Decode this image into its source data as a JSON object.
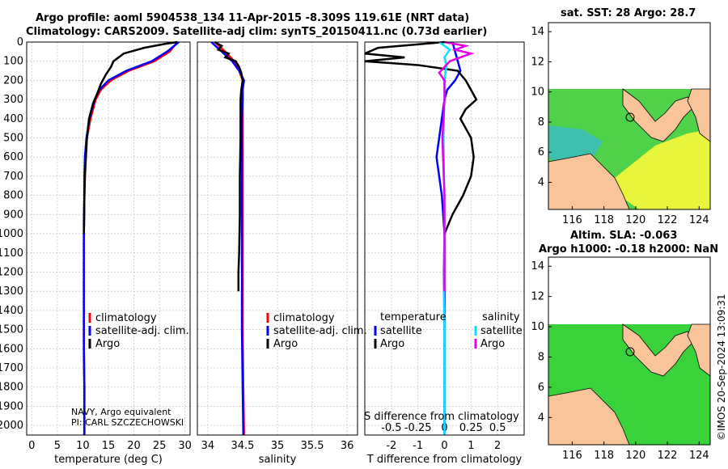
{
  "header": {
    "title_line1": "Argo profile: aoml 5904538_134 11-Apr-2015 -8.309S 119.61E (NRT data)",
    "title_line2": "Climatology: CARS2009. Satellite-adj clim: synTS_20150411.nc (0.73d earlier)"
  },
  "map_sst": {
    "title": "sat. SST: 28 Argo: 28.7",
    "x_ticks": [
      "116",
      "118",
      "120",
      "122",
      "124"
    ],
    "y_ticks": [
      "4",
      "6",
      "8",
      "10",
      "12",
      "14"
    ]
  },
  "map_sla": {
    "title_line1": "Altim. SLA: -0.063",
    "title_line2": "Argo h1000: -0.18 h2000: NaN",
    "x_ticks": [
      "116",
      "118",
      "120",
      "122",
      "124"
    ],
    "y_ticks": [
      "4",
      "6",
      "8",
      "10",
      "12",
      "14"
    ]
  },
  "watermark": "©IMOS 20-Sep-2024 13:09:31",
  "source_note": {
    "line1": "NAVY, Argo equivalent",
    "line2": "PI: CARL SZCZECHOWSKI"
  },
  "colors": {
    "climatology": "#ff0000",
    "satellite": "#0000ff",
    "argo": "#000000",
    "s_satellite": "#00e5ff",
    "s_argo": "#e600e6",
    "land": "#f9c49a"
  },
  "chart_data": [
    {
      "type": "line",
      "name": "temperature-profile",
      "xlabel": "temperature (deg C)",
      "xlim": [
        -1,
        31
      ],
      "ylim": [
        0,
        2050
      ],
      "x_ticks": [
        "0",
        "5",
        "10",
        "15",
        "20",
        "25",
        "30"
      ],
      "y_ticks": [
        "0",
        "100",
        "200",
        "300",
        "400",
        "500",
        "600",
        "700",
        "800",
        "900",
        "1000",
        "1100",
        "1200",
        "1300",
        "1400",
        "1500",
        "1600",
        "1700",
        "1800",
        "1900",
        "2000"
      ],
      "legend": [
        "climatology",
        "satellite-adj. clim.",
        "Argo"
      ],
      "series": [
        {
          "name": "climatology",
          "color": "#ff0000",
          "depth": [
            0,
            50,
            100,
            150,
            200,
            250,
            300,
            400,
            500,
            600,
            700,
            800,
            1000,
            1200,
            1400,
            1600,
            1800,
            2000,
            2050
          ],
          "values": [
            28.5,
            27,
            24,
            19,
            15.5,
            13.5,
            12.5,
            11.5,
            10.8,
            10.5,
            10.4,
            10.3,
            10.2,
            10.2,
            10.2,
            10.2,
            10.3,
            10.3,
            10.3
          ]
        },
        {
          "name": "satellite-adj. clim.",
          "color": "#0000ff",
          "depth": [
            0,
            50,
            100,
            150,
            200,
            250,
            300,
            400,
            500,
            600,
            700,
            800,
            1000,
            1200,
            1400,
            1600,
            1800,
            2000,
            2050
          ],
          "values": [
            28.8,
            26.5,
            23.5,
            18.5,
            15,
            13.2,
            12.3,
            11.3,
            10.7,
            10.4,
            10.3,
            10.3,
            10.2,
            10.2,
            10.2,
            10.2,
            10.3,
            10.3,
            10.3
          ]
        },
        {
          "name": "Argo",
          "color": "#000000",
          "depth": [
            0,
            10,
            30,
            60,
            100,
            130,
            170,
            220,
            270,
            320,
            400,
            500,
            600,
            700,
            800,
            1000
          ],
          "values": [
            28.5,
            26,
            22,
            18,
            16,
            15.5,
            14.5,
            13.5,
            12.8,
            12,
            11.2,
            10.8,
            10.6,
            10.4,
            10.3,
            10.2
          ]
        }
      ]
    },
    {
      "type": "line",
      "name": "salinity-profile",
      "xlabel": "salinity",
      "xlim": [
        33.85,
        36.15
      ],
      "ylim": [
        0,
        2050
      ],
      "x_ticks": [
        "34",
        "34.5",
        "35",
        "35.5",
        "36"
      ],
      "legend": [
        "climatology",
        "satellite-adj. clim.",
        "Argo"
      ],
      "series": [
        {
          "name": "climatology",
          "color": "#ff0000",
          "depth": [
            0,
            50,
            100,
            150,
            200,
            250,
            300,
            400,
            600,
            800,
            1000,
            1200,
            1500,
            1800,
            2050
          ],
          "values": [
            34.1,
            34.25,
            34.38,
            34.45,
            34.5,
            34.5,
            34.5,
            34.5,
            34.5,
            34.5,
            34.5,
            34.5,
            34.5,
            34.51,
            34.52
          ]
        },
        {
          "name": "satellite-adj. clim.",
          "color": "#0000ff",
          "depth": [
            0,
            50,
            100,
            150,
            200,
            250,
            300,
            400,
            600,
            800,
            1000,
            1200,
            1500,
            1800,
            2050
          ],
          "values": [
            34.05,
            34.2,
            34.35,
            34.45,
            34.52,
            34.5,
            34.5,
            34.49,
            34.49,
            34.49,
            34.49,
            34.49,
            34.49,
            34.5,
            34.51
          ]
        },
        {
          "name": "Argo",
          "color": "#000000",
          "depth": [
            0,
            20,
            40,
            60,
            80,
            100,
            130,
            160,
            200,
            250,
            300,
            400,
            500,
            700,
            900,
            1100,
            1200,
            1300
          ],
          "values": [
            34.1,
            34.2,
            34.15,
            34.3,
            34.25,
            34.4,
            34.45,
            34.48,
            34.5,
            34.48,
            34.47,
            34.47,
            34.47,
            34.46,
            34.46,
            34.45,
            34.44,
            34.44
          ]
        }
      ]
    },
    {
      "type": "line",
      "name": "difference-profile",
      "xlabel": "T difference from climatology",
      "xlabel_top": "S difference from climatology",
      "xlim": [
        -3,
        3
      ],
      "ylim": [
        0,
        2050
      ],
      "x_ticks": [
        "-2",
        "-1",
        "0",
        "1",
        "2"
      ],
      "s_ticks": [
        "-0.5",
        "-0.25",
        "0",
        "0.25",
        "0.5"
      ],
      "legend_temperature_title": "temperature",
      "legend_salinity_title": "salinity",
      "legend_temperature": [
        "satellite",
        "Argo"
      ],
      "legend_salinity": [
        "satellite",
        "Argo"
      ],
      "series": [
        {
          "name": "T satellite",
          "color": "#0000ff",
          "depth": [
            0,
            50,
            100,
            150,
            200,
            250,
            300,
            400,
            500,
            600,
            800,
            1000,
            1200,
            1500,
            1800,
            2050
          ],
          "values": [
            0.3,
            0.4,
            0.5,
            0.6,
            0.4,
            0.1,
            0.0,
            -0.1,
            -0.2,
            -0.3,
            -0.1,
            0.0,
            0.0,
            0.0,
            0.0,
            0.0
          ]
        },
        {
          "name": "T Argo",
          "color": "#000000",
          "depth": [
            0,
            30,
            60,
            80,
            100,
            120,
            150,
            200,
            250,
            300,
            350,
            400,
            500,
            600,
            700,
            800,
            900,
            1000
          ],
          "values": [
            0.0,
            -2.5,
            -3.0,
            -1.5,
            -3.0,
            -1.0,
            0.5,
            0.8,
            1.0,
            1.2,
            0.8,
            0.6,
            1.0,
            1.1,
            1.0,
            0.7,
            0.3,
            0.0
          ]
        },
        {
          "name": "S satellite",
          "color": "#00e5ff",
          "depth": [
            0,
            40,
            80,
            120,
            200,
            300,
            500,
            800,
            1000,
            1200,
            1500,
            1800,
            2050
          ],
          "values": [
            -0.05,
            0.05,
            0.0,
            0.02,
            0.0,
            0.0,
            -0.01,
            0.0,
            0.0,
            -0.01,
            0.0,
            0.0,
            0.0
          ]
        },
        {
          "name": "S Argo",
          "color": "#e600e6",
          "depth": [
            0,
            20,
            40,
            60,
            80,
            100,
            130,
            160,
            200,
            300,
            500,
            800,
            1000,
            1200,
            1300
          ],
          "values": [
            0.0,
            0.2,
            0.1,
            0.25,
            0.15,
            0.05,
            0.0,
            -0.05,
            0.0,
            0.0,
            -0.02,
            0.0,
            0.0,
            0.0,
            0.0
          ]
        }
      ]
    }
  ]
}
